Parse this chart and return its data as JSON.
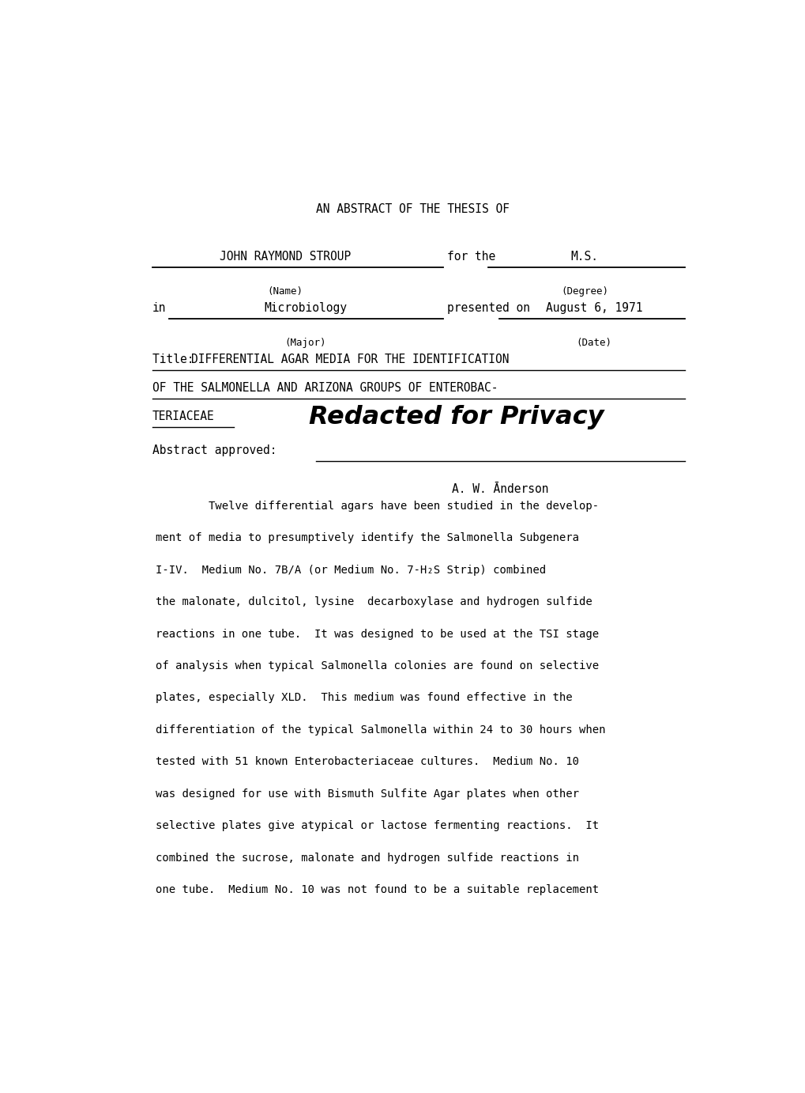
{
  "bg_color": "#ffffff",
  "page_width": 10.2,
  "page_height": 13.82,
  "header_title": "AN ABSTRACT OF THE THESIS OF",
  "name_label": "JOHN RAYMOND STROUP",
  "for_the_text": "for the",
  "degree_label": "M.S.",
  "name_caption": "(Name)",
  "degree_caption": "(Degree)",
  "in_text": "in",
  "major_label": "Microbiology",
  "presented_on_text": "presented on",
  "date_label": "August 6, 1971",
  "major_caption": "(Major)",
  "date_caption": "(Date)",
  "title_line3_redacted": "Redacted for Privacy",
  "abstract_approved_text": "Abstract approved:",
  "advisor_name": "A. W. Ānderson",
  "body_lines": [
    "        Twelve differential agars have been studied in the develop-",
    "ment of media to presumptively identify the Salmonella Subgenera",
    "I-IV.  Medium No. 7B/A (or Medium No. 7-H₂S Strip) combined",
    "the malonate, dulcitol, lysine  decarboxylase and hydrogen sulfide",
    "reactions in one tube.  It was designed to be used at the TSI stage",
    "of analysis when typical Salmonella colonies are found on selective",
    "plates, especially XLD.  This medium was found effective in the",
    "differentiation of the typical Salmonella within 24 to 30 hours when",
    "tested with 51 known Enterobacteriaceae cultures.  Medium No. 10",
    "was designed for use with Bismuth Sulfite Agar plates when other",
    "selective plates give atypical or lactose fermenting reactions.  It",
    "combined the sucrose, malonate and hydrogen sulfide reactions in",
    "one tube.  Medium No. 10 was not found to be a suitable replacement"
  ]
}
